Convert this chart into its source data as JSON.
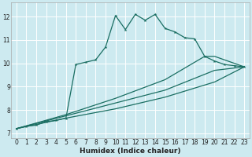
{
  "xlabel": "Humidex (Indice chaleur)",
  "bg_color": "#cdeaf0",
  "grid_color": "#b0d8e0",
  "line_color": "#1a6e62",
  "xlim": [
    -0.5,
    23.5
  ],
  "ylim": [
    6.8,
    12.6
  ],
  "xticks": [
    0,
    1,
    2,
    3,
    4,
    5,
    6,
    7,
    8,
    9,
    10,
    11,
    12,
    13,
    14,
    15,
    16,
    17,
    18,
    19,
    20,
    21,
    22,
    23
  ],
  "yticks": [
    7,
    8,
    9,
    10,
    11,
    12
  ],
  "main_x": [
    0,
    1,
    2,
    3,
    4,
    5,
    6,
    7,
    8,
    9,
    10,
    11,
    12,
    13,
    14,
    15,
    16,
    17,
    18,
    19,
    20,
    21,
    22,
    23
  ],
  "main_y": [
    7.2,
    7.3,
    7.35,
    7.5,
    7.55,
    7.65,
    9.95,
    10.05,
    10.15,
    10.7,
    12.05,
    11.45,
    12.1,
    11.85,
    12.1,
    11.5,
    11.35,
    11.1,
    11.05,
    10.3,
    10.1,
    9.95,
    9.9,
    9.85
  ],
  "line2_x": [
    0,
    5,
    10,
    15,
    19,
    20,
    23
  ],
  "line2_y": [
    7.2,
    7.8,
    8.5,
    9.3,
    10.3,
    10.3,
    9.85
  ],
  "line3_x": [
    0,
    5,
    10,
    15,
    20,
    23
  ],
  "line3_y": [
    7.2,
    7.75,
    8.3,
    8.85,
    9.7,
    9.85
  ],
  "line4_x": [
    0,
    5,
    10,
    15,
    20,
    23
  ],
  "line4_y": [
    7.2,
    7.65,
    8.05,
    8.55,
    9.2,
    9.85
  ]
}
